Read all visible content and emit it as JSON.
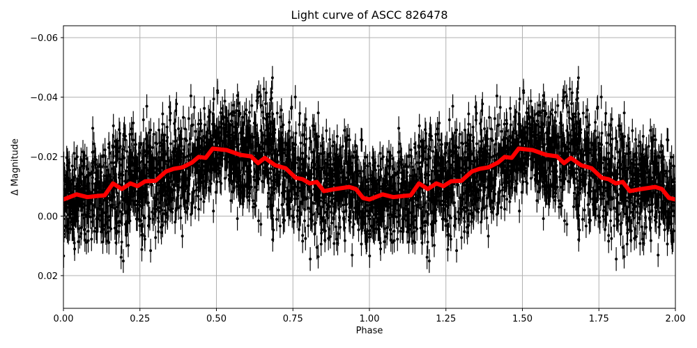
{
  "chart_data": {
    "type": "scatter",
    "title": "Light curve of ASCC 826478",
    "xlabel": "Phase",
    "ylabel": "Δ Magnitude",
    "xlim": [
      0.0,
      2.0
    ],
    "ylim": [
      0.031,
      -0.064
    ],
    "y_inverted": true,
    "grid": true,
    "x_ticks": [
      "0.00",
      "0.25",
      "0.50",
      "0.75",
      "1.00",
      "1.25",
      "1.50",
      "1.75",
      "2.00"
    ],
    "x_tick_values": [
      0.0,
      0.25,
      0.5,
      0.75,
      1.0,
      1.25,
      1.5,
      1.75,
      2.0
    ],
    "y_ticks": [
      "−0.06",
      "−0.04",
      "−0.02",
      "0.00",
      "0.02"
    ],
    "y_tick_values": [
      -0.06,
      -0.04,
      -0.02,
      0.0,
      0.02
    ],
    "series": [
      {
        "name": "observations",
        "style": "black points with vertical error bars",
        "color": "#000000",
        "description": "dense cloud of phase-folded photometry, scatter roughly ±0.03 mag around the binned curve, repeated for phases 0-1 and 1-2",
        "approx_error_bar": 0.004
      },
      {
        "name": "binned curve",
        "style": "thick red line",
        "color": "#ff0000",
        "x": [
          0.0,
          0.043,
          0.078,
          0.112,
          0.135,
          0.162,
          0.191,
          0.219,
          0.242,
          0.267,
          0.301,
          0.335,
          0.36,
          0.389,
          0.42,
          0.442,
          0.465,
          0.488,
          0.533,
          0.578,
          0.613,
          0.636,
          0.658,
          0.692,
          0.726,
          0.759,
          0.782,
          0.805,
          0.828,
          0.851,
          0.888,
          0.934,
          0.956,
          0.979,
          1.0
        ],
        "y": [
          -0.0056,
          -0.0073,
          -0.0064,
          -0.0068,
          -0.007,
          -0.011,
          -0.0091,
          -0.011,
          -0.0101,
          -0.0117,
          -0.0119,
          -0.015,
          -0.0159,
          -0.0164,
          -0.018,
          -0.0199,
          -0.0196,
          -0.0227,
          -0.0222,
          -0.0206,
          -0.0201,
          -0.0178,
          -0.0196,
          -0.0171,
          -0.0161,
          -0.0129,
          -0.0124,
          -0.011,
          -0.0115,
          -0.0084,
          -0.0091,
          -0.0098,
          -0.0091,
          -0.0061,
          -0.0056
        ],
        "periodic_repeat": true
      }
    ]
  },
  "colors": {
    "curve": "#ff0000",
    "points": "#000000",
    "grid": "#b0b0b0"
  }
}
